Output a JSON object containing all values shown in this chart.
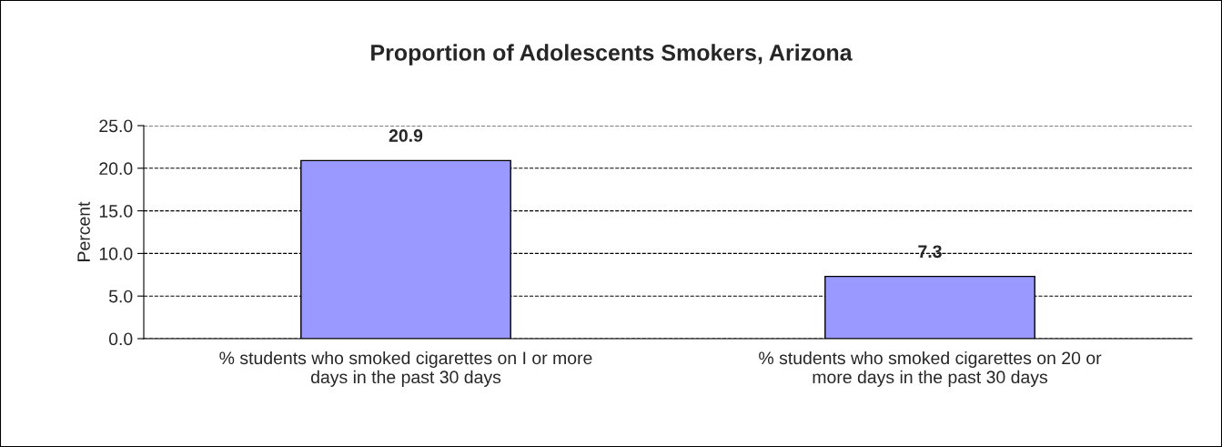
{
  "chart_data": {
    "type": "bar",
    "title": "Proportion of Adolescents Smokers, Arizona",
    "ylabel": "Percent",
    "categories": [
      "% students who smoked cigarettes on I or more\ndays in the past 30 days",
      "% students who smoked cigarettes on 20 or\nmore days in the past 30 days"
    ],
    "values": [
      20.9,
      7.3
    ],
    "color": "#9999ff",
    "ylim": [
      0,
      25
    ],
    "yticks": [
      {
        "value": 0,
        "label": "0.0"
      },
      {
        "value": 5,
        "label": "5.0"
      },
      {
        "value": 10,
        "label": "10.0"
      },
      {
        "value": 15,
        "label": "15.0"
      },
      {
        "value": 20,
        "label": "20.0"
      },
      {
        "value": 25,
        "label": "25.0"
      }
    ],
    "grid": "y",
    "data_labels": true,
    "line_style": "dashed"
  }
}
